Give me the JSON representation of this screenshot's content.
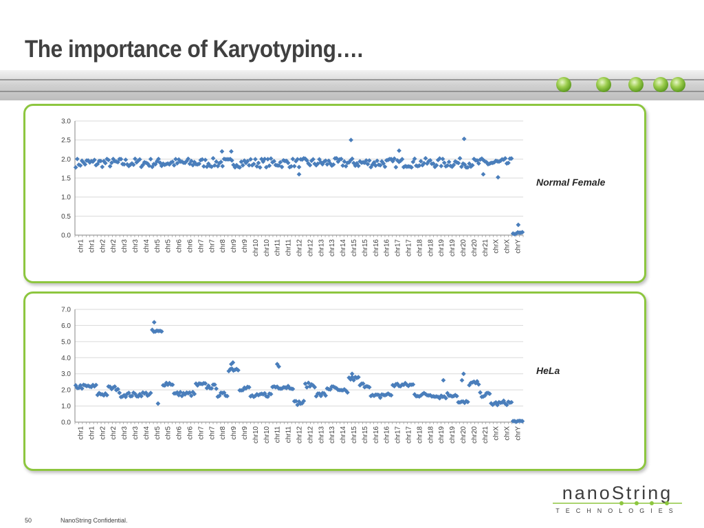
{
  "slide": {
    "title": "The importance of Karyotyping….",
    "page_number": "50",
    "confidential": "NanoString Confidential.",
    "brand_main": "nanoString",
    "brand_sub": "TECHNOLOGIES",
    "accent": "#8dc63f",
    "point_color": "#4a7ebb"
  },
  "chart_data": [
    {
      "type": "scatter",
      "annotation": "Normal Female",
      "categories": [
        "chr1",
        "chr1",
        "chr2",
        "chr2",
        "chr3",
        "chr3",
        "chr4",
        "chr5",
        "chr5",
        "chr6",
        "chr6",
        "chr7",
        "chr7",
        "chr8",
        "chr9",
        "chr9",
        "chr10",
        "chr10",
        "chr11",
        "chr11",
        "chr12",
        "chr12",
        "chr13",
        "chr13",
        "chr14",
        "chr15",
        "chr15",
        "chr16",
        "chr16",
        "chr17",
        "chr17",
        "chr18",
        "chr18",
        "chr19",
        "chr19",
        "chr20",
        "chr20",
        "chr21",
        "chrX",
        "chrX",
        "chrY"
      ],
      "y_ticks": [
        "3.0",
        "2.5",
        "2.0",
        "1.5",
        "1.0",
        "0.5",
        "0.0"
      ],
      "ylim": [
        0,
        3
      ],
      "grid": true,
      "baseline": 1.9,
      "noise": 0.12,
      "chrY_value": 0.05,
      "outliers": [
        {
          "category": "chr15",
          "y": 2.5
        },
        {
          "category": "chr20",
          "y": 2.53
        },
        {
          "category": "chr8",
          "y": 2.2
        },
        {
          "category": "chr9",
          "y": 2.2
        },
        {
          "category": "chr17",
          "y": 2.22
        },
        {
          "category": "chr12",
          "y": 1.6
        },
        {
          "category": "chr21",
          "y": 1.6
        },
        {
          "category": "chrX",
          "y": 1.52
        },
        {
          "category": "chrY",
          "y": 0.27
        }
      ]
    },
    {
      "type": "scatter",
      "annotation": "HeLa",
      "categories": [
        "chr1",
        "chr1",
        "chr2",
        "chr2",
        "chr3",
        "chr3",
        "chr4",
        "chr5",
        "chr5",
        "chr6",
        "chr6",
        "chr7",
        "chr7",
        "chr8",
        "chr9",
        "chr9",
        "chr10",
        "chr10",
        "chr11",
        "chr11",
        "chr12",
        "chr12",
        "chr13",
        "chr13",
        "chr14",
        "chr15",
        "chr15",
        "chr16",
        "chr16",
        "chr17",
        "chr17",
        "chr18",
        "chr18",
        "chr19",
        "chr19",
        "chr20",
        "chr20",
        "chr21",
        "chrX",
        "chrX",
        "chrY"
      ],
      "y_ticks": [
        "7.0",
        "6.0",
        "5.0",
        "4.0",
        "3.0",
        "2.0",
        "1.0",
        "0.0"
      ],
      "ylim": [
        0,
        7
      ],
      "grid": true,
      "segment_levels": [
        2.2,
        2.2,
        1.75,
        2.1,
        1.7,
        1.7,
        1.75,
        5.6,
        2.4,
        1.75,
        1.75,
        2.3,
        2.2,
        1.7,
        3.3,
        2.1,
        1.6,
        1.7,
        2.2,
        2.2,
        1.2,
        2.3,
        1.7,
        2.1,
        1.9,
        2.7,
        2.3,
        1.6,
        1.7,
        2.3,
        2.3,
        1.7,
        1.7,
        1.6,
        1.7,
        1.2,
        2.4,
        1.7,
        1.15,
        1.2,
        0.05
      ],
      "noise": 0.14,
      "outliers": [
        {
          "category": "chr5",
          "y": 6.2
        },
        {
          "category": "chr5",
          "y": 1.15
        },
        {
          "category": "chr9",
          "y": 3.7
        },
        {
          "category": "chr9",
          "y": 3.6
        },
        {
          "category": "chr11",
          "y": 3.45
        },
        {
          "category": "chr11",
          "y": 3.6
        },
        {
          "category": "chr15",
          "y": 3.0
        },
        {
          "category": "chr19",
          "y": 2.6
        },
        {
          "category": "chr20",
          "y": 3.0
        },
        {
          "category": "chr20",
          "y": 2.6
        }
      ]
    }
  ]
}
